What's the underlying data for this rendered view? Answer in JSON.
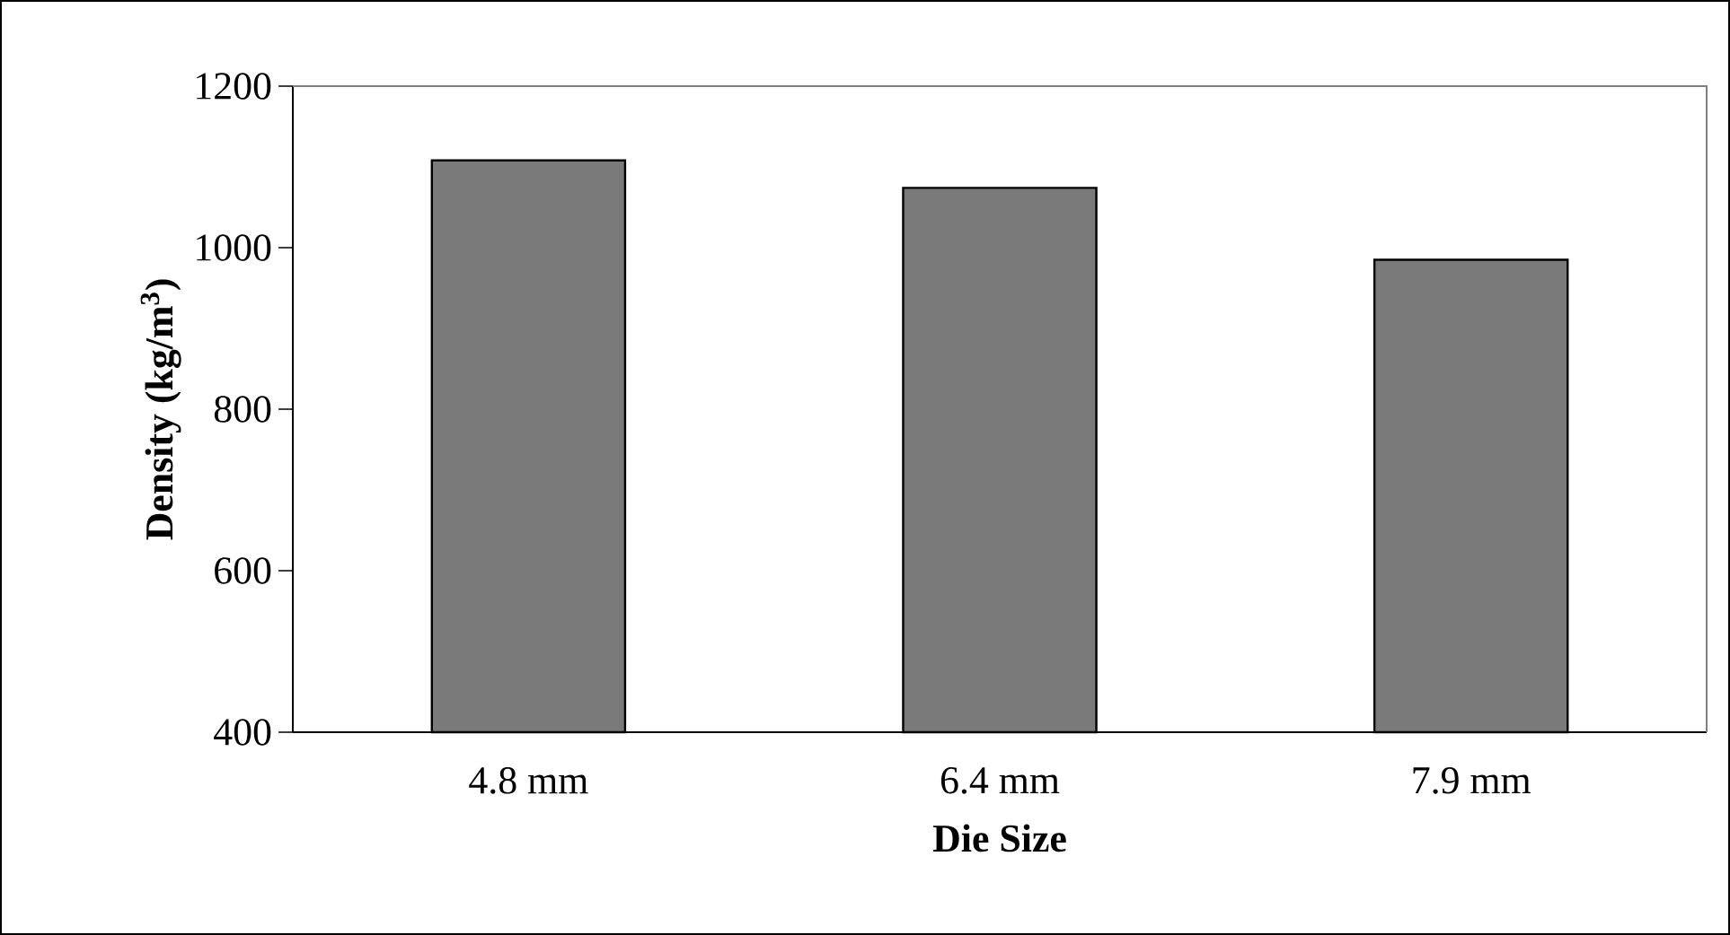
{
  "chart_data": {
    "type": "bar",
    "xlabel": "Die Size",
    "ylabel": "**Density (kg/m$^{3}$)**",
    "categories": [
      "4.8 mm",
      "6.4 mm",
      "7.9 mm"
    ],
    "values": [
      1108,
      1074,
      985
    ],
    "color": "#7a7a7a",
    "ylim": [
      400,
      1200
    ],
    "yticks": [
      400,
      600,
      800,
      1000,
      1200
    ]
  }
}
